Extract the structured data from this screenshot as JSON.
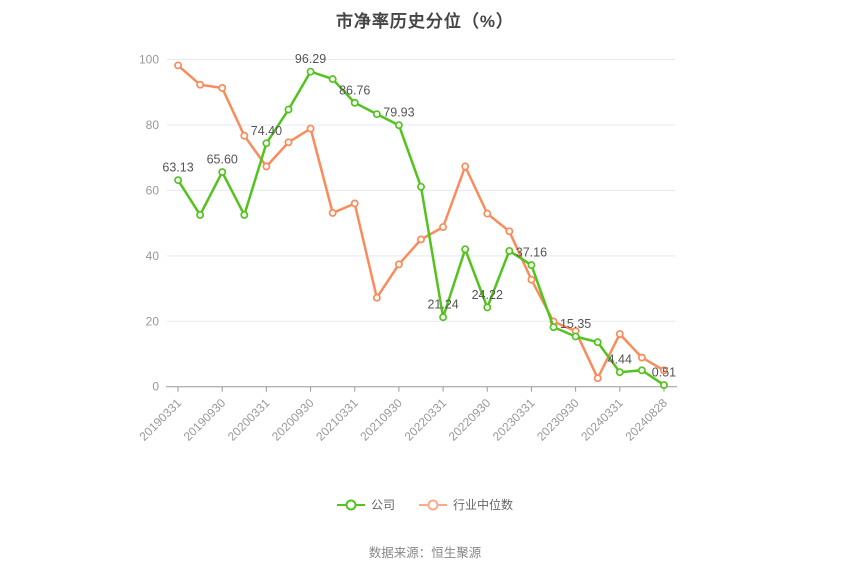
{
  "title": "市净率历史分位（%）",
  "footer": "数据来源：恒生聚源",
  "colors": {
    "grid": "#e3e9f4",
    "axis_line": "#999999",
    "axis_text": "#999999",
    "data_label": "#555555",
    "title_text": "#454545",
    "legend_text": "#666666",
    "footer_text": "#888888",
    "marker_fill": "#ffffff"
  },
  "chart_data": {
    "type": "line",
    "title": "市净率历史分位（%）",
    "x_tick_labels": [
      "20190331",
      "20190930",
      "20200331",
      "20200930",
      "20210331",
      "20210930",
      "20220331",
      "20220930",
      "20230331",
      "20230930",
      "20240331",
      "20240828"
    ],
    "points_per_tick": 2,
    "y_ticks": [
      0,
      20,
      40,
      60,
      80,
      100
    ],
    "ylim": [
      0,
      100
    ],
    "grid": true,
    "legend_position": "bottom",
    "series": [
      {
        "name": "公司",
        "color": "#53c31f",
        "legend_color": "#53c31f",
        "values": [
          63.13,
          52.5,
          65.6,
          52.5,
          74.4,
          84.7,
          96.29,
          94.0,
          86.76,
          83.3,
          79.93,
          61.1,
          21.24,
          42.0,
          24.22,
          41.5,
          37.16,
          18.2,
          15.35,
          13.6,
          4.44,
          5.0,
          0.51
        ],
        "point_labels": [
          "63.13",
          null,
          "65.60",
          null,
          "74.40",
          null,
          "96.29",
          null,
          "86.76",
          null,
          "79.93",
          null,
          "21.24",
          null,
          "24.22",
          null,
          "37.16",
          null,
          "15.35",
          null,
          "4.44",
          null,
          "0.51"
        ]
      },
      {
        "name": "行业中位数",
        "color": "#fa8c5c",
        "legend_color": "#f9ab8c",
        "values": [
          98.2,
          92.3,
          91.3,
          76.7,
          67.3,
          74.7,
          78.9,
          53.1,
          56.0,
          27.2,
          37.4,
          45.0,
          48.8,
          67.3,
          52.9,
          47.5,
          32.7,
          19.9,
          17.0,
          2.6,
          16.1,
          8.9,
          5.0
        ],
        "point_labels": []
      }
    ]
  }
}
